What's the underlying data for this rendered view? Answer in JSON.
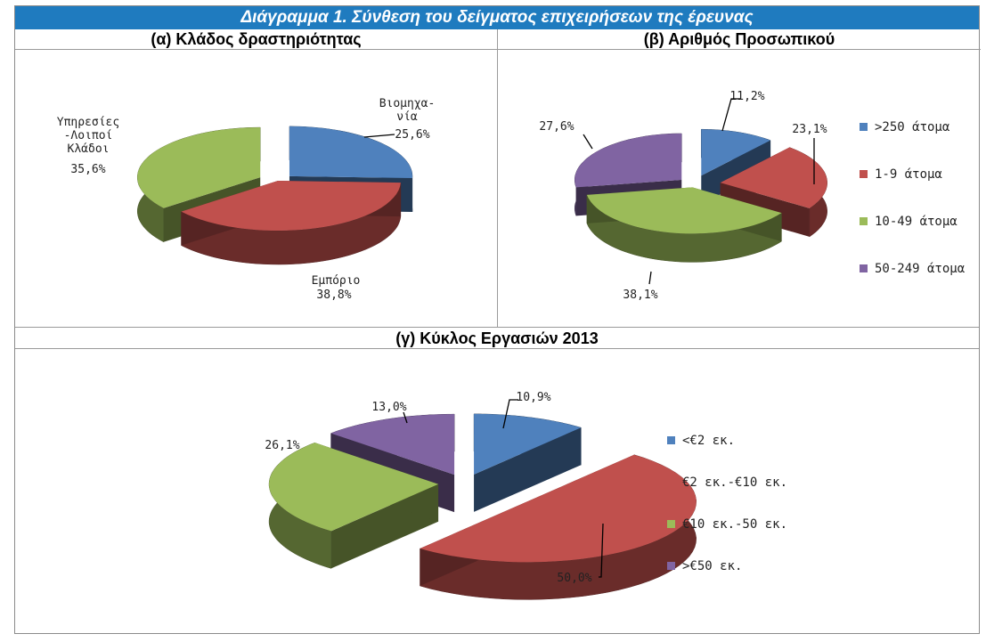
{
  "title": "Διάγραμμα 1. Σύνθεση του δείγματος επιχειρήσεων της έρευνας",
  "chart_data": [
    {
      "type": "pie",
      "title": "(α) Κλάδος δραστηριότητας",
      "slices": [
        {
          "label": "Βιομηχα-νία",
          "value": 25.6,
          "value_label": "25,6%",
          "color": "#4f81bd"
        },
        {
          "label": "Εμπόριο",
          "value": 38.8,
          "value_label": "38,8%",
          "color": "#c0504d"
        },
        {
          "label": "Υπηρεσίες-Λοιποί Κλάδοι",
          "value": 35.6,
          "value_label": "35,6%",
          "color": "#9bbb59"
        }
      ],
      "legend": "none"
    },
    {
      "type": "pie",
      "title": "(β) Αριθμός Προσωπικού",
      "slices": [
        {
          "label": ">250 άτομα",
          "value": 11.2,
          "value_label": "11,2%",
          "color": "#4f81bd"
        },
        {
          "label": "1-9 άτομα",
          "value": 23.1,
          "value_label": "23,1%",
          "color": "#c0504d"
        },
        {
          "label": "10-49 άτομα",
          "value": 38.1,
          "value_label": "38,1%",
          "color": "#9bbb59"
        },
        {
          "label": "50-249 άτομα",
          "value": 27.6,
          "value_label": "27,6%",
          "color": "#8064a2"
        }
      ],
      "legend": "right"
    },
    {
      "type": "pie",
      "title": "(γ) Κύκλος Εργασιών 2013",
      "slices": [
        {
          "label": "<€2 εκ.",
          "value": 10.9,
          "value_label": "10,9%",
          "color": "#4f81bd"
        },
        {
          "label": "€2 εκ.-€10 εκ.",
          "value": 50.0,
          "value_label": "50,0%",
          "color": "#c0504d"
        },
        {
          "label": "€10 εκ.-50 εκ.",
          "value": 26.1,
          "value_label": "26,1%",
          "color": "#9bbb59"
        },
        {
          "label": ">€50 εκ.",
          "value": 13.0,
          "value_label": "13,0%",
          "color": "#8064a2"
        }
      ],
      "legend": "right"
    }
  ]
}
